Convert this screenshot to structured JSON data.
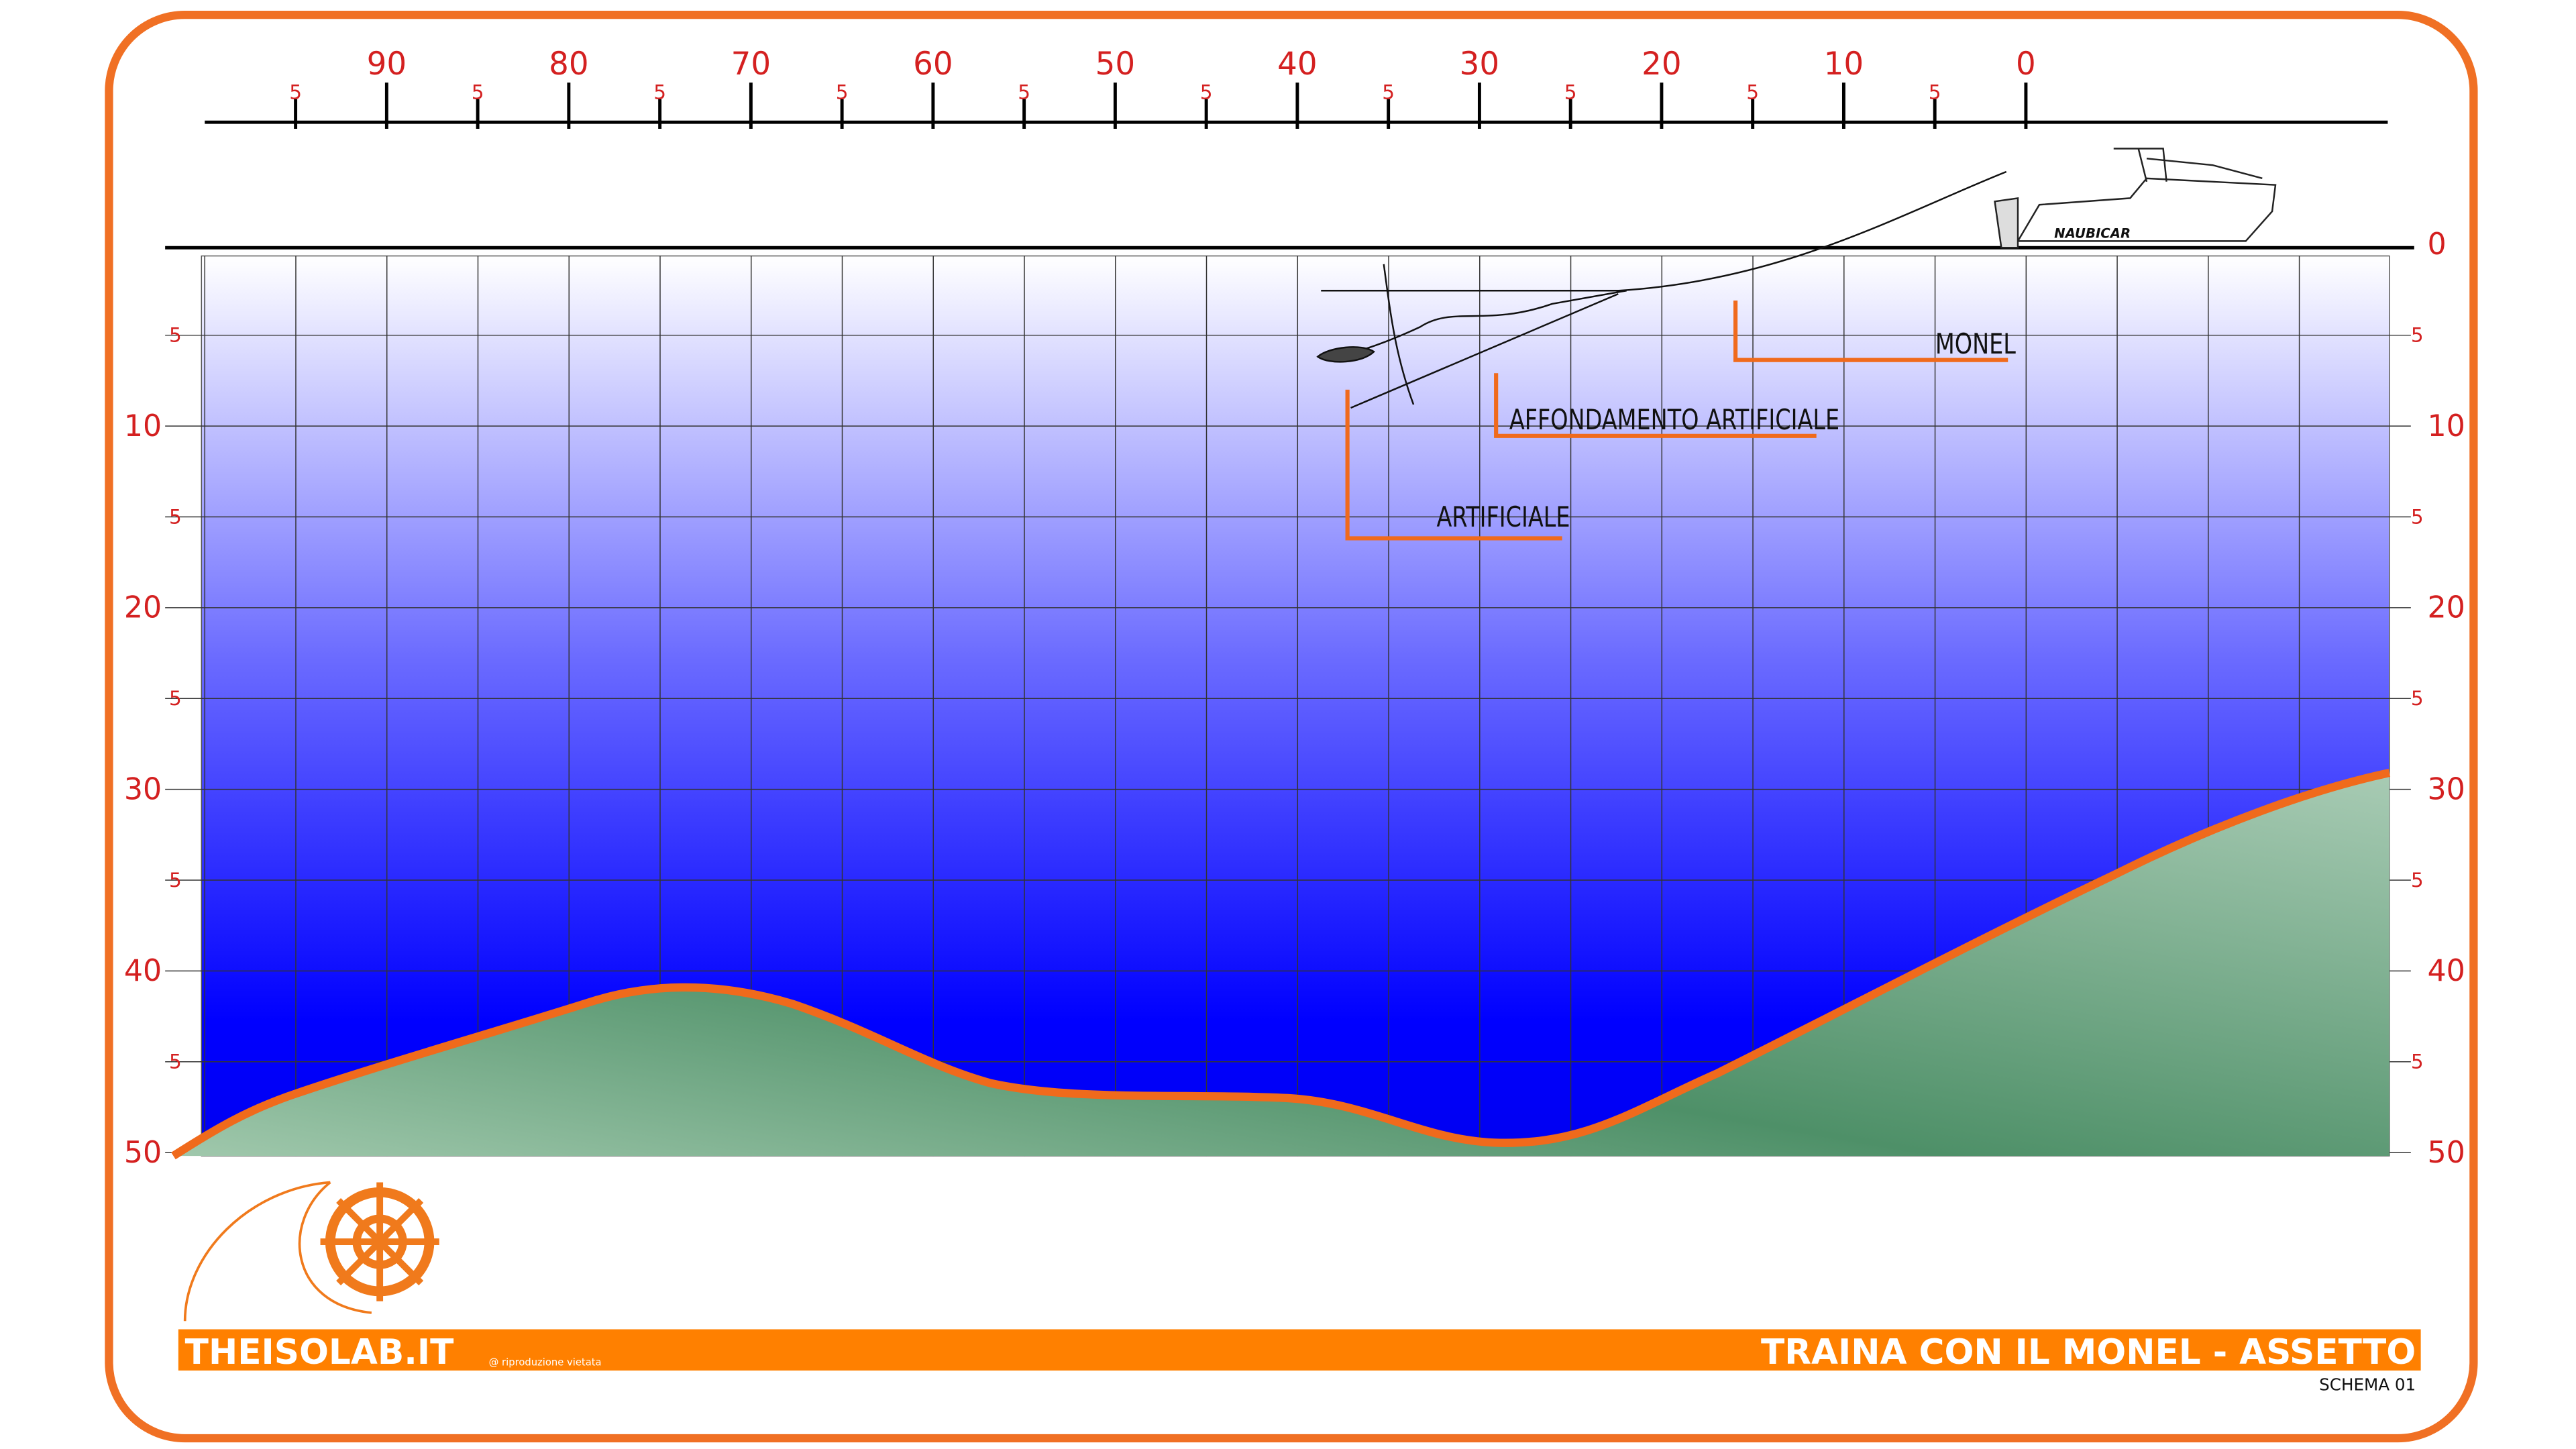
{
  "top_scale": {
    "labels": [
      "5",
      "90",
      "5",
      "80",
      "5",
      "70",
      "5",
      "60",
      "5",
      "50",
      "5",
      "40",
      "5",
      "30",
      "5",
      "20",
      "5",
      "10",
      "5",
      "0"
    ]
  },
  "depth_scale": {
    "left_labels": [
      "5",
      "10",
      "5",
      "20",
      "5",
      "30",
      "5",
      "40",
      "5",
      "50"
    ],
    "right_labels": [
      "0",
      "5",
      "10",
      "5",
      "20",
      "5",
      "30",
      "5",
      "40",
      "5",
      "50"
    ]
  },
  "callouts": {
    "monel": "MONEL",
    "sinker": "AFFONDAMENTO ARTIFICIALE",
    "lure": "ARTIFICIALE"
  },
  "boat": {
    "brand": "NAUBICAR"
  },
  "footer": {
    "site": "THEISOLAB.IT",
    "copyright": "@ riproduzione vietata",
    "title": "TRAINA CON IL MONEL - ASSETTO",
    "subtitle": "SCHEMA 01"
  }
}
